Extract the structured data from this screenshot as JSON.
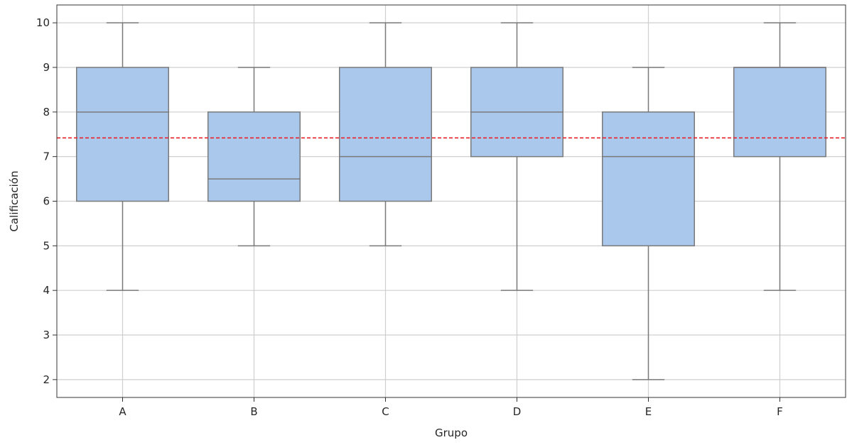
{
  "chart_data": {
    "type": "box",
    "title": "",
    "xlabel": "Grupo",
    "ylabel": "Calificación",
    "ylim": [
      1.6,
      10.4
    ],
    "yticks": [
      2,
      3,
      4,
      5,
      6,
      7,
      8,
      9,
      10
    ],
    "categories": [
      "A",
      "B",
      "C",
      "D",
      "E",
      "F"
    ],
    "boxes": [
      {
        "category": "A",
        "whisker_low": 4,
        "q1": 6,
        "median": 8,
        "q3": 9,
        "whisker_high": 10
      },
      {
        "category": "B",
        "whisker_low": 5,
        "q1": 6,
        "median": 6.5,
        "q3": 8,
        "whisker_high": 9
      },
      {
        "category": "C",
        "whisker_low": 5,
        "q1": 6,
        "median": 7,
        "q3": 9,
        "whisker_high": 10
      },
      {
        "category": "D",
        "whisker_low": 4,
        "q1": 7,
        "median": 8,
        "q3": 9,
        "whisker_high": 10
      },
      {
        "category": "E",
        "whisker_low": 2,
        "q1": 5,
        "median": 7,
        "q3": 8,
        "whisker_high": 9
      },
      {
        "category": "F",
        "whisker_low": 4,
        "q1": 7,
        "median": 9,
        "q3": 9,
        "whisker_high": 10
      }
    ],
    "reference_line": {
      "value": 7.42,
      "color": "#e8212a",
      "style": "dashed"
    },
    "grid": true,
    "colors": {
      "box_fill": "#a9c8ec",
      "box_edge": "#7a7a7a",
      "grid": "#cfcfcf",
      "axis": "#333333"
    }
  }
}
